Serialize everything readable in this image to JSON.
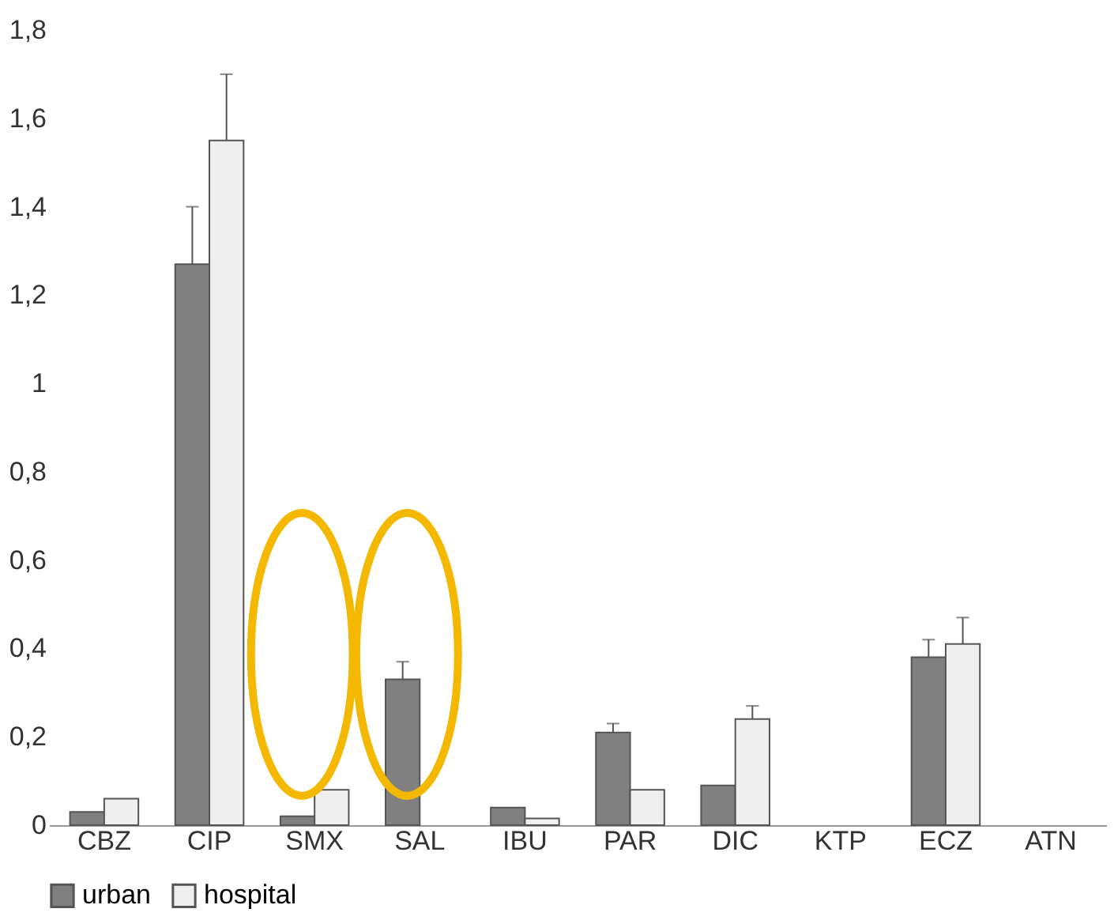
{
  "chart_data": {
    "type": "bar",
    "categories": [
      "CBZ",
      "CIP",
      "SMX",
      "SAL",
      "IBU",
      "PAR",
      "DIC",
      "KTP",
      "ECZ",
      "ATN"
    ],
    "series": [
      {
        "name": "urban",
        "color": "#808080",
        "values": [
          0.03,
          1.27,
          0.02,
          0.33,
          0.04,
          0.21,
          0.09,
          null,
          0.38,
          null
        ],
        "errors": [
          null,
          [
            1.27,
            1.4
          ],
          null,
          [
            0.33,
            0.37
          ],
          null,
          [
            0.21,
            0.23
          ],
          null,
          null,
          [
            0.38,
            0.42
          ],
          null
        ]
      },
      {
        "name": "hospital",
        "color": "#efefef",
        "values": [
          0.06,
          1.55,
          0.08,
          null,
          0.015,
          0.08,
          0.24,
          null,
          0.41,
          null
        ],
        "errors": [
          null,
          [
            1.55,
            1.7
          ],
          null,
          null,
          null,
          null,
          [
            0.24,
            0.27
          ],
          null,
          [
            0.41,
            0.47
          ],
          null
        ]
      }
    ],
    "ylim": [
      0,
      1.8
    ],
    "yticks": [
      0,
      {
        "value": 0.2,
        "label": "0,2"
      },
      {
        "value": 0.4,
        "label": "0,4"
      },
      {
        "value": 0.6,
        "label": "0,6"
      },
      {
        "value": 0.8,
        "label": "0,8"
      },
      1,
      {
        "value": 1.2,
        "label": "1,2"
      },
      {
        "value": 1.4,
        "label": "1,4"
      },
      {
        "value": 1.6,
        "label": "1,6"
      },
      {
        "value": 1.8,
        "label": "1,8"
      }
    ],
    "grid": false,
    "legend": "bottom"
  }
}
